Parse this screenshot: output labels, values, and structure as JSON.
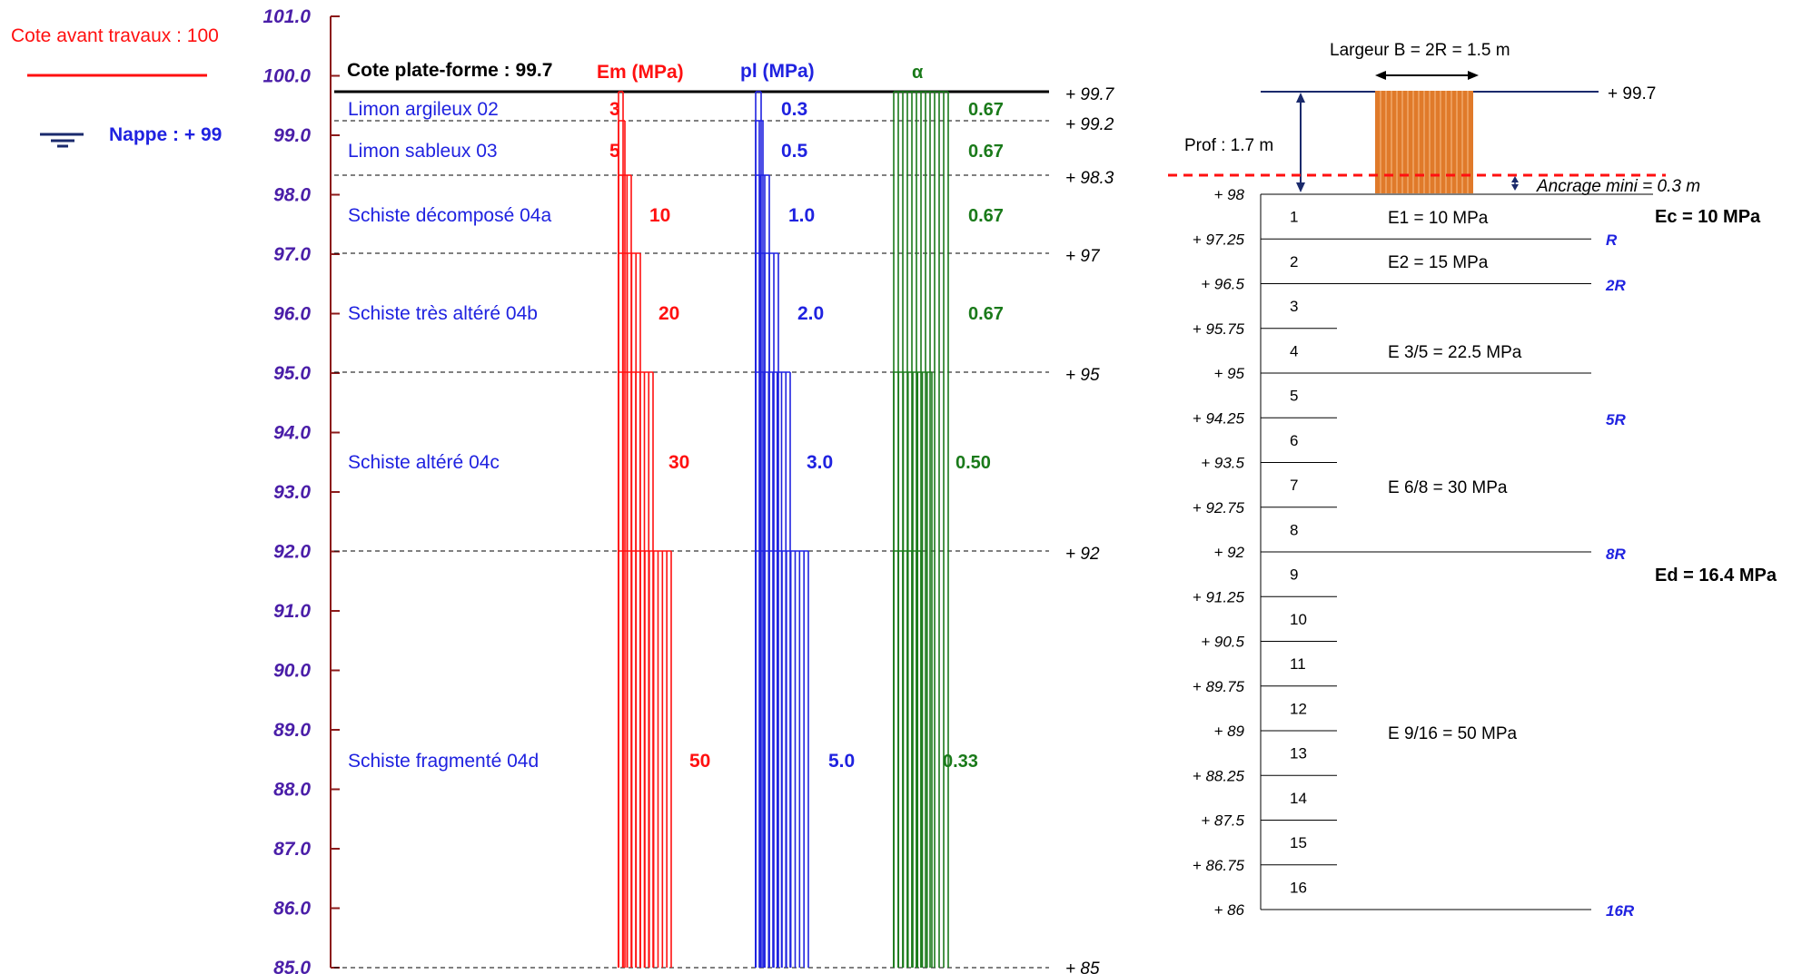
{
  "left_panel": {
    "cote_avant_label": "Cote avant travaux : 100",
    "nappe_label": "Nappe : + 99",
    "cote_plateforme_label": "Cote plate-forme : 99.7",
    "col_em": "Em (MPa)",
    "col_pl": "pl (MPa)",
    "col_alpha": "α",
    "axis_ticks": [
      "101.0",
      "100.0",
      "99.0",
      "98.0",
      "97.0",
      "96.0",
      "95.0",
      "94.0",
      "93.0",
      "92.0",
      "91.0",
      "90.0",
      "89.0",
      "88.0",
      "87.0",
      "86.0",
      "85.0"
    ],
    "elev_labels": [
      "+ 99.7",
      "+ 99.2",
      "+ 98.3",
      "+ 97",
      "+ 95",
      "+ 92",
      "+ 85"
    ],
    "layers": [
      {
        "name": "Limon argileux 02",
        "em": "3",
        "pl": "0.3",
        "alpha": "0.67"
      },
      {
        "name": "Limon sableux 03",
        "em": "5",
        "pl": "0.5",
        "alpha": "0.67"
      },
      {
        "name": "Schiste décomposé 04a",
        "em": "10",
        "pl": "1.0",
        "alpha": "0.67"
      },
      {
        "name": "Schiste très altéré 04b",
        "em": "20",
        "pl": "2.0",
        "alpha": "0.67"
      },
      {
        "name": "Schiste altéré 04c",
        "em": "30",
        "pl": "3.0",
        "alpha": "0.50"
      },
      {
        "name": "Schiste fragmenté 04d",
        "em": "50",
        "pl": "5.0",
        "alpha": "0.33"
      }
    ]
  },
  "right_panel": {
    "largeur_label": "Largeur B = 2R = 1.5 m",
    "top_elev": "+ 99.7",
    "prof_label": "Prof : 1.7 m",
    "ancrage_label": "Ancrage mini = 0.3 m",
    "ec_label": "Ec = 10 MPa",
    "ed_label": "Ed = 16.4 MPa",
    "elevations": [
      "+ 98",
      "+ 97.25",
      "+ 96.5",
      "+ 95.75",
      "+ 95",
      "+ 94.25",
      "+ 93.5",
      "+ 92.75",
      "+ 92",
      "+ 91.25",
      "+ 90.5",
      "+ 89.75",
      "+ 89",
      "+ 88.25",
      "+ 87.5",
      "+ 86.75",
      "+ 86"
    ],
    "slices": [
      "1",
      "2",
      "3",
      "4",
      "5",
      "6",
      "7",
      "8",
      "9",
      "10",
      "11",
      "12",
      "13",
      "14",
      "15",
      "16"
    ],
    "modules": [
      "E1 = 10 MPa",
      "E2 = 15 MPa",
      "E 3/5 = 22.5 MPa",
      "E 6/8 = 30 MPa",
      "E 9/16 = 50 MPa"
    ],
    "r_labels": [
      "R",
      "2R",
      "5R",
      "8R",
      "16R"
    ]
  },
  "colors": {
    "em": "#ff1010",
    "pl": "#1f22e0",
    "alpha": "#1a7a1a",
    "axis": "#8b1a1a",
    "pile": "#e07a2a",
    "tick_text": "#4a1ea8"
  }
}
